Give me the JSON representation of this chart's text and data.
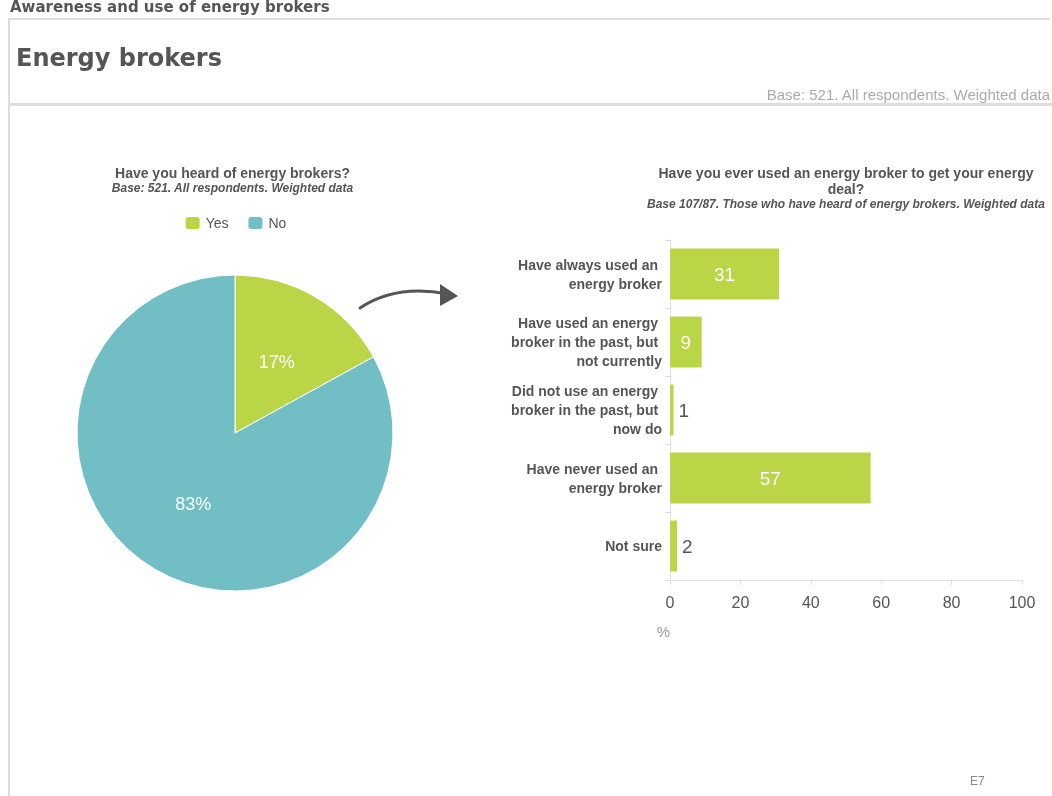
{
  "chart_data": [
    {
      "type": "pie",
      "title": "Have you heard of energy brokers?",
      "subtitle": "Base: 521. All respondents. Weighted data",
      "categories": [
        "Yes",
        "No"
      ],
      "values": [
        17,
        83
      ],
      "value_labels": [
        "17%",
        "83%"
      ],
      "colors": [
        "#bad647",
        "#71bfc5"
      ],
      "data_labels": true,
      "legend": "top",
      "annotations": [
        "Awareness and use of energy brokers",
        "Energy brokers",
        "Base: 521. All respondents. Weighted data",
        "E7"
      ]
    },
    {
      "type": "bar",
      "orientation": "horizontal",
      "title": "Have you ever used an energy broker to get your energy deal?",
      "subtitle": "Base 107/87. Those who have heard of energy brokers. Weighted data",
      "categories": [
        "Have always used an energy broker",
        "Have used an energy broker in the past, but not currently",
        "Did not use an energy broker in the past, but now do",
        "Have never used an energy broker",
        "Not sure"
      ],
      "values": [
        31,
        9,
        1,
        57,
        2
      ],
      "color": "#bad647",
      "xlabel": "%",
      "xlim": [
        0,
        100
      ],
      "xticks": [
        0,
        20,
        40,
        60,
        80,
        100
      ],
      "data_labels": true,
      "grid": false
    }
  ]
}
